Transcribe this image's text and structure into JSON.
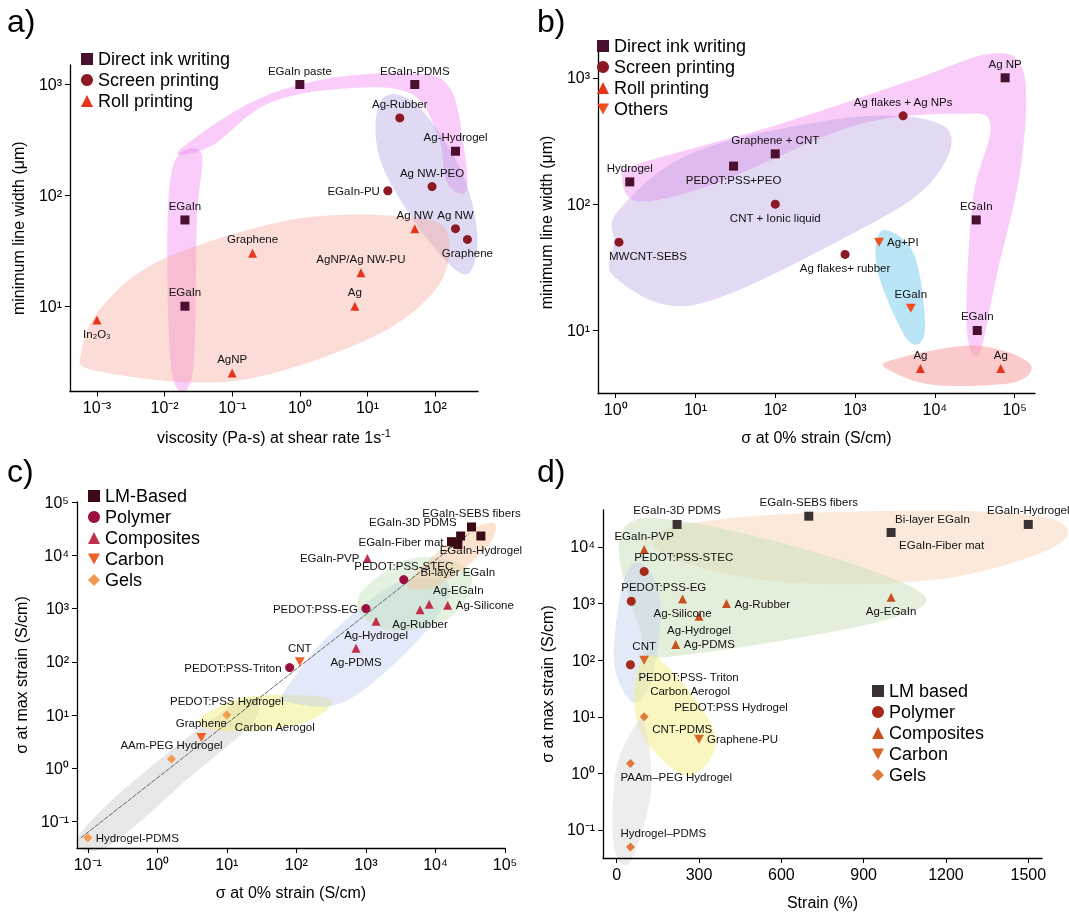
{
  "chart_data": [
    {
      "type": "scatter",
      "title": "a)",
      "xlabel": "viscosity (Pa-s) at shear rate 1s$^{-1}$",
      "ylabel": "minimum line width (μm)",
      "log": "xy",
      "grid": false,
      "legend": "top left",
      "xlim": [
        0.0004,
        430
      ],
      "ylim": [
        1.7,
        1500
      ],
      "xticks": [
        {
          "value": 0.001,
          "label": "10⁻³"
        },
        {
          "value": 0.01,
          "label": "10⁻²"
        },
        {
          "value": 0.1,
          "label": "10⁻¹"
        },
        {
          "value": 1,
          "label": "10⁰"
        },
        {
          "value": 10,
          "label": "10¹"
        },
        {
          "value": 100,
          "label": "10²"
        }
      ],
      "yticks": [
        {
          "value": 10,
          "label": "10¹"
        },
        {
          "value": 100,
          "label": "10²"
        },
        {
          "value": 1000,
          "label": "10³"
        }
      ],
      "series": [
        {
          "name": "Direct ink writing",
          "color": "#4a1030",
          "marker": "square",
          "x": [
            1,
            50,
            200,
            0.02,
            0.02
          ],
          "values": [
            1000,
            1000,
            250,
            60,
            10
          ]
        },
        {
          "name": "Screen printing",
          "color": "#8b1a24",
          "marker": "circle",
          "x": [
            30,
            20,
            90,
            200,
            300
          ],
          "values": [
            500,
            110,
            120,
            50,
            40
          ]
        },
        {
          "name": "Roll printing",
          "color": "#e8341c",
          "marker": "triangle",
          "x": [
            0.001,
            0.1,
            0.2,
            8,
            6.5,
            50
          ],
          "values": [
            7.5,
            2.5,
            30,
            20,
            10,
            50
          ]
        }
      ],
      "annotations": [
        {
          "text": "EGaIn paste",
          "x": 1,
          "y": 1000
        },
        {
          "text": "EGaIn-PDMS",
          "x": 50,
          "y": 1000
        },
        {
          "text": "Ag-Rubber",
          "x": 30,
          "y": 500
        },
        {
          "text": "Ag-Hydrogel",
          "x": 200,
          "y": 250
        },
        {
          "text": "EGaIn-PU",
          "x": 20,
          "y": 110
        },
        {
          "text": "Ag NW-PEO",
          "x": 90,
          "y": 120
        },
        {
          "text": "EGaIn",
          "x": 0.02,
          "y": 60
        },
        {
          "text": "Ag NW",
          "x": 50,
          "y": 50
        },
        {
          "text": "Ag NW",
          "x": 200,
          "y": 50
        },
        {
          "text": "Graphene",
          "x": 300,
          "y": 40
        },
        {
          "text": "Graphene",
          "x": 0.2,
          "y": 30
        },
        {
          "text": "AgNP/Ag NW-PU",
          "x": 8,
          "y": 20
        },
        {
          "text": "Ag",
          "x": 6.5,
          "y": 10
        },
        {
          "text": "EGaIn",
          "x": 0.02,
          "y": 10
        },
        {
          "text": "In₂O₃",
          "x": 0.001,
          "y": 7.5
        },
        {
          "text": "AgNP",
          "x": 0.1,
          "y": 2.5
        }
      ]
    },
    {
      "type": "scatter",
      "title": "b)",
      "xlabel": "σ at 0% strain (S/cm)",
      "ylabel": "minimum line width (μm)",
      "log": "xy",
      "grid": false,
      "legend": "top left",
      "xlim": [
        0.6,
        180000
      ],
      "ylim": [
        3.2,
        1600
      ],
      "xticks": [
        {
          "value": 1,
          "label": "10⁰"
        },
        {
          "value": 10,
          "label": "10¹"
        },
        {
          "value": 100,
          "label": "10²"
        },
        {
          "value": 1000,
          "label": "10³"
        },
        {
          "value": 10000,
          "label": "10⁴"
        },
        {
          "value": 100000,
          "label": "10⁵"
        }
      ],
      "yticks": [
        {
          "value": 10,
          "label": "10¹"
        },
        {
          "value": 100,
          "label": "10²"
        },
        {
          "value": 1000,
          "label": "10³"
        }
      ],
      "series": [
        {
          "name": "Direct ink writing",
          "color": "#4a1030",
          "marker": "square",
          "x": [
            76000,
            100,
            1.5,
            30,
            33000,
            34000
          ],
          "values": [
            1000,
            250,
            150,
            200,
            75,
            10
          ]
        },
        {
          "name": "Screen printing",
          "color": "#8b1a24",
          "marker": "circle",
          "x": [
            4000,
            100,
            1.1,
            750
          ],
          "values": [
            500,
            100,
            50,
            40
          ]
        },
        {
          "name": "Roll printing",
          "color": "#e8341c",
          "marker": "triangle",
          "x": [
            6600,
            67000
          ],
          "values": [
            5,
            5
          ]
        },
        {
          "name": "Others",
          "color": "#f05020",
          "marker": "triangle-down",
          "x": [
            2000,
            5000
          ],
          "values": [
            50,
            15
          ]
        }
      ],
      "annotations": [
        {
          "text": "Ag NP",
          "x": 76000,
          "y": 1000
        },
        {
          "text": "Ag flakes + Ag NPs",
          "x": 4000,
          "y": 500
        },
        {
          "text": "Graphene + CNT",
          "x": 100,
          "y": 250
        },
        {
          "text": "Hydrogel",
          "x": 1.5,
          "y": 150
        },
        {
          "text": "PEDOT:PSS+PEO",
          "x": 30,
          "y": 200
        },
        {
          "text": "CNT + Ionic liquid",
          "x": 100,
          "y": 100
        },
        {
          "text": "MWCNT-SEBS",
          "x": 1.1,
          "y": 50
        },
        {
          "text": "Ag flakes+ rubber",
          "x": 750,
          "y": 40
        },
        {
          "text": "Ag+PI",
          "x": 2000,
          "y": 50
        },
        {
          "text": "EGaIn",
          "x": 33000,
          "y": 75
        },
        {
          "text": "EGaIn",
          "x": 5000,
          "y": 15
        },
        {
          "text": "EGaIn",
          "x": 34000,
          "y": 10
        },
        {
          "text": "Ag",
          "x": 6600,
          "y": 5
        },
        {
          "text": "Ag",
          "x": 67000,
          "y": 5
        }
      ]
    },
    {
      "type": "scatter",
      "title": "c)",
      "xlabel": "σ at 0% strain (S/cm)",
      "ylabel": "σ at max strain (S/cm)",
      "log": "xy",
      "grid": false,
      "legend": "top left",
      "xlim": [
        0.07,
        100000
      ],
      "ylim": [
        0.032,
        100000
      ],
      "xticks": [
        {
          "value": 0.1,
          "label": "10⁻¹"
        },
        {
          "value": 1,
          "label": "10⁰"
        },
        {
          "value": 10,
          "label": "10¹"
        },
        {
          "value": 100,
          "label": "10²"
        },
        {
          "value": 1000,
          "label": "10³"
        },
        {
          "value": 10000,
          "label": "10⁴"
        },
        {
          "value": 100000,
          "label": "10⁵"
        }
      ],
      "yticks": [
        {
          "value": 0.1,
          "label": "10⁻¹"
        },
        {
          "value": 1,
          "label": "10⁰"
        },
        {
          "value": 10,
          "label": "10¹"
        },
        {
          "value": 100,
          "label": "10²"
        },
        {
          "value": 1000,
          "label": "10³"
        },
        {
          "value": 10000,
          "label": "10⁴"
        },
        {
          "value": 100000,
          "label": "10⁵"
        }
      ],
      "series": [
        {
          "type": "line",
          "color": "#666666",
          "line_style": "dashed",
          "marker": "none",
          "x": [
            0.08,
            30000
          ],
          "values": [
            0.05,
            25000
          ]
        },
        {
          "name": "LM-Based",
          "color": "#3c0a14",
          "marker": "square",
          "x": [
            33000,
            23000,
            17000,
            45000,
            21000
          ],
          "values": [
            34000,
            23000,
            18000,
            23000,
            16000
          ]
        },
        {
          "name": "Polymer",
          "color": "#9c1040",
          "marker": "circle",
          "x": [
            3500,
            1000,
            80
          ],
          "values": [
            3500,
            1000,
            78
          ]
        },
        {
          "name": "Composites",
          "color": "#c0304a",
          "marker": "triangle",
          "x": [
            1050,
            8100,
            15000,
            6000,
            1400,
            720
          ],
          "values": [
            8700,
            1200,
            1150,
            950,
            580,
            180
          ]
        },
        {
          "name": "Carbon",
          "color": "#f0602a",
          "marker": "triangle-down",
          "x": [
            112,
            4.3
          ],
          "values": [
            100,
            3.8
          ]
        },
        {
          "name": "Gels",
          "color": "#f49a50",
          "marker": "diamond",
          "x": [
            10,
            1.6,
            0.1
          ],
          "values": [
            10,
            1.5,
            0.05
          ]
        }
      ],
      "annotations": [
        {
          "text": "EGaIn-SEBS fibers",
          "x": 33000,
          "y": 34000
        },
        {
          "text": "EGaIn-3D PDMS",
          "x": 23000,
          "y": 23000
        },
        {
          "text": "EGaIn-Fiber mat",
          "x": 17000,
          "y": 18000
        },
        {
          "text": "EGaIn-Hydrogel",
          "x": 45000,
          "y": 23000
        },
        {
          "text": "Bi-layer EGaIn",
          "x": 21000,
          "y": 16000
        },
        {
          "text": "EGaIn-PVP",
          "x": 1050,
          "y": 8700
        },
        {
          "text": "PEDOT:PSS-STEC",
          "x": 3500,
          "y": 3500
        },
        {
          "text": "PEDOT:PSS-EG",
          "x": 1000,
          "y": 1000
        },
        {
          "text": "PEDOT:PSS-Triton",
          "x": 80,
          "y": 78
        },
        {
          "text": "Ag-EGaIn",
          "x": 8100,
          "y": 1200
        },
        {
          "text": "Ag-Silicone",
          "x": 15000,
          "y": 1150
        },
        {
          "text": "Ag-Rubber",
          "x": 6000,
          "y": 950
        },
        {
          "text": "Ag-Hydrogel",
          "x": 1400,
          "y": 580
        },
        {
          "text": "Ag-PDMS",
          "x": 720,
          "y": 180
        },
        {
          "text": "CNT",
          "x": 112,
          "y": 100
        },
        {
          "text": "Graphene",
          "x": 4.3,
          "y": 3.8
        },
        {
          "text": "PEDOT:PSS Hydrogel",
          "x": 10,
          "y": 10
        },
        {
          "text": "Carbon Aerogol",
          "x": 10,
          "y": 10
        },
        {
          "text": "AAm-PEG Hydrogel",
          "x": 1.6,
          "y": 1.5
        },
        {
          "text": "Hydrogel-PDMS",
          "x": 0.1,
          "y": 0.05
        }
      ]
    },
    {
      "type": "scatter",
      "title": "d)",
      "xlabel": "Strain (%)",
      "ylabel": "σ at max strain (S/cm)",
      "log": "y",
      "grid": false,
      "legend": "bottom right",
      "xlim": [
        -50,
        1550
      ],
      "ylim": [
        0.032,
        45000
      ],
      "xticks": [
        0,
        300,
        600,
        900,
        1200,
        1500
      ],
      "yticks": [
        {
          "value": 0.1,
          "label": "10⁻¹"
        },
        {
          "value": 1,
          "label": "10⁰"
        },
        {
          "value": 10,
          "label": "10¹"
        },
        {
          "value": 100,
          "label": "10²"
        },
        {
          "value": 1000,
          "label": "10³"
        },
        {
          "value": 10000,
          "label": "10⁴"
        }
      ],
      "series": [
        {
          "name": "LM based",
          "color": "#3a3232",
          "marker": "square",
          "x": [
            220,
            700,
            1000,
            1500
          ],
          "values": [
            25000,
            35000,
            18000,
            25000
          ]
        },
        {
          "name": "Polymer",
          "color": "#a52a1a",
          "marker": "circle",
          "x": [
            100,
            53,
            50
          ],
          "values": [
            3700,
            1100,
            83
          ]
        },
        {
          "name": "Composites",
          "color": "#c8501e",
          "marker": "triangle",
          "x": [
            100,
            240,
            400,
            300,
            215,
            1000
          ],
          "values": [
            9000,
            1200,
            1000,
            600,
            190,
            1300
          ]
        },
        {
          "name": "Carbon",
          "color": "#d8682a",
          "marker": "triangle-down",
          "x": [
            100,
            300
          ],
          "values": [
            100,
            4
          ]
        },
        {
          "name": "Gels",
          "color": "#e07a3a",
          "marker": "diamond",
          "x": [
            100,
            50,
            50
          ],
          "values": [
            10,
            1.5,
            0.05
          ]
        }
      ],
      "annotations": [
        {
          "text": "EGaIn-3D PDMS",
          "x": 220,
          "y": 25000
        },
        {
          "text": "EGaIn-SEBS fibers",
          "x": 700,
          "y": 35000
        },
        {
          "text": "Bi-layer EGaIn",
          "x": 1000,
          "y": 18000
        },
        {
          "text": "EGaIn-Fiber mat",
          "x": 1000,
          "y": 18000
        },
        {
          "text": "EGaIn-Hydrogel",
          "x": 1500,
          "y": 25000
        },
        {
          "text": "EGaIn-PVP",
          "x": 100,
          "y": 9000
        },
        {
          "text": "PEDOT:PSS-STEC",
          "x": 100,
          "y": 3700
        },
        {
          "text": "PEDOT:PSS-EG",
          "x": 53,
          "y": 1100
        },
        {
          "text": "Ag-Silicone",
          "x": 240,
          "y": 1200
        },
        {
          "text": "Ag-Rubber",
          "x": 400,
          "y": 1000
        },
        {
          "text": "Ag-Hydrogel",
          "x": 300,
          "y": 600
        },
        {
          "text": "Ag-PDMS",
          "x": 215,
          "y": 190
        },
        {
          "text": "Ag-EGaIn",
          "x": 1000,
          "y": 1300
        },
        {
          "text": "CNT",
          "x": 100,
          "y": 100
        },
        {
          "text": "PEDOT:PSS- Triton",
          "x": 50,
          "y": 83
        },
        {
          "text": "Carbon Aerogol",
          "x": 100,
          "y": 10
        },
        {
          "text": "PEDOT:PSS Hydrogel",
          "x": 100,
          "y": 10
        },
        {
          "text": "CNT-PDMS",
          "x": 100,
          "y": 10
        },
        {
          "text": "Graphene-PU",
          "x": 300,
          "y": 4
        },
        {
          "text": "PAAm–PEG Hydrogel",
          "x": 50,
          "y": 1.5
        },
        {
          "text": "Hydrogel–PDMS",
          "x": 50,
          "y": 0.05
        }
      ]
    }
  ]
}
